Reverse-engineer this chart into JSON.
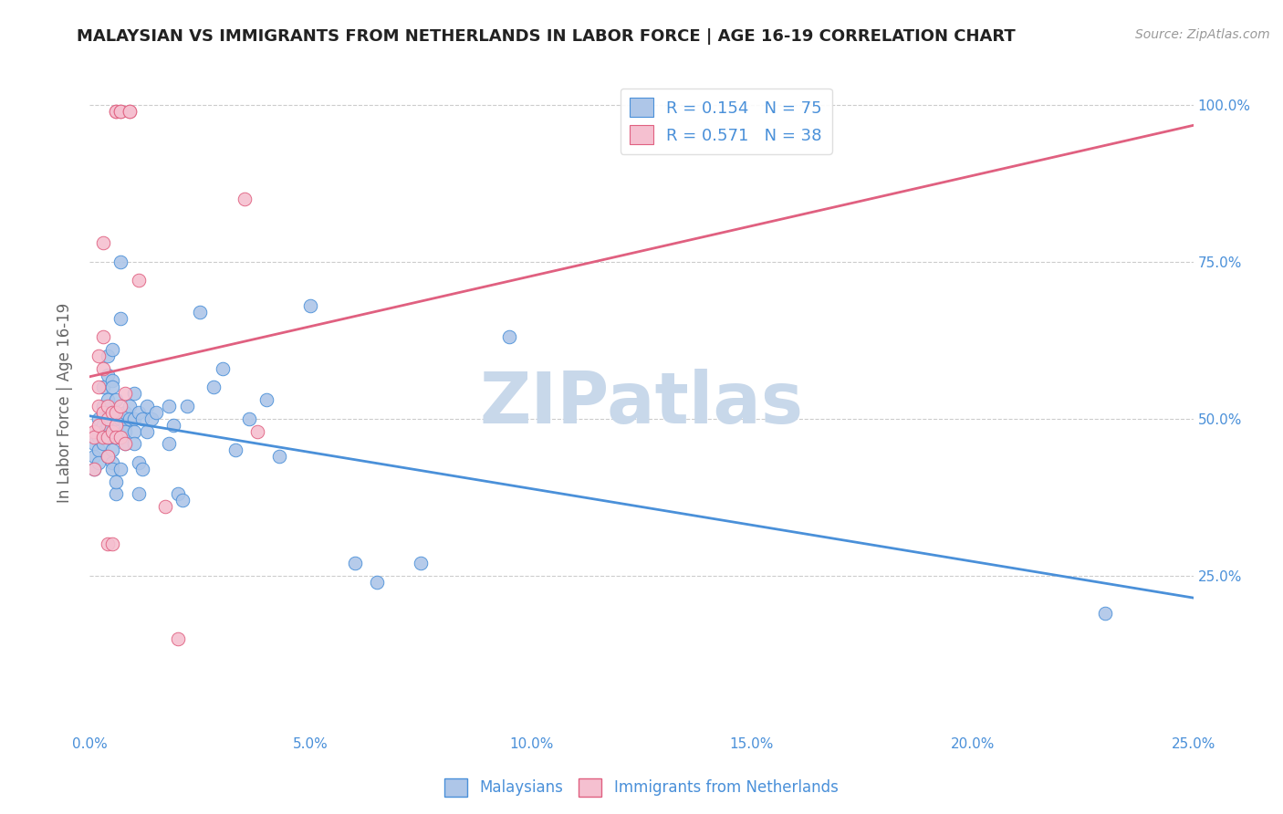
{
  "title": "MALAYSIAN VS IMMIGRANTS FROM NETHERLANDS IN LABOR FORCE | AGE 16-19 CORRELATION CHART",
  "source": "Source: ZipAtlas.com",
  "ylabel": "In Labor Force | Age 16-19",
  "xlim": [
    0.0,
    0.25
  ],
  "ylim": [
    0.0,
    1.05
  ],
  "xtick_labels": [
    "0.0%",
    "5.0%",
    "10.0%",
    "15.0%",
    "20.0%",
    "25.0%"
  ],
  "xtick_values": [
    0.0,
    0.05,
    0.1,
    0.15,
    0.2,
    0.25
  ],
  "ytick_labels": [
    "25.0%",
    "50.0%",
    "75.0%",
    "100.0%"
  ],
  "ytick_values": [
    0.25,
    0.5,
    0.75,
    1.0
  ],
  "blue_color": "#aec6e8",
  "pink_color": "#f5c0d0",
  "blue_line_color": "#4a90d9",
  "pink_line_color": "#e06080",
  "r_blue": 0.154,
  "n_blue": 75,
  "r_pink": 0.571,
  "n_pink": 38,
  "watermark": "ZIPatlas",
  "watermark_color": "#c8d8ea",
  "legend_label_blue": "Malaysians",
  "legend_label_pink": "Immigrants from Netherlands",
  "blue_scatter": [
    [
      0.001,
      0.44
    ],
    [
      0.001,
      0.46
    ],
    [
      0.001,
      0.42
    ],
    [
      0.002,
      0.48
    ],
    [
      0.002,
      0.45
    ],
    [
      0.002,
      0.5
    ],
    [
      0.002,
      0.47
    ],
    [
      0.002,
      0.43
    ],
    [
      0.003,
      0.49
    ],
    [
      0.003,
      0.51
    ],
    [
      0.003,
      0.46
    ],
    [
      0.003,
      0.52
    ],
    [
      0.003,
      0.48
    ],
    [
      0.003,
      0.55
    ],
    [
      0.004,
      0.6
    ],
    [
      0.004,
      0.57
    ],
    [
      0.004,
      0.44
    ],
    [
      0.004,
      0.53
    ],
    [
      0.004,
      0.49
    ],
    [
      0.004,
      0.47
    ],
    [
      0.005,
      0.56
    ],
    [
      0.005,
      0.45
    ],
    [
      0.005,
      0.43
    ],
    [
      0.005,
      0.61
    ],
    [
      0.005,
      0.55
    ],
    [
      0.005,
      0.42
    ],
    [
      0.006,
      0.5
    ],
    [
      0.006,
      0.47
    ],
    [
      0.006,
      0.38
    ],
    [
      0.006,
      0.53
    ],
    [
      0.006,
      0.51
    ],
    [
      0.006,
      0.4
    ],
    [
      0.007,
      0.5
    ],
    [
      0.007,
      0.42
    ],
    [
      0.007,
      0.75
    ],
    [
      0.007,
      0.66
    ],
    [
      0.007,
      0.5
    ],
    [
      0.008,
      0.49
    ],
    [
      0.008,
      0.46
    ],
    [
      0.008,
      0.51
    ],
    [
      0.008,
      0.48
    ],
    [
      0.009,
      0.52
    ],
    [
      0.009,
      0.5
    ],
    [
      0.01,
      0.5
    ],
    [
      0.01,
      0.48
    ],
    [
      0.01,
      0.54
    ],
    [
      0.01,
      0.46
    ],
    [
      0.011,
      0.51
    ],
    [
      0.011,
      0.38
    ],
    [
      0.011,
      0.43
    ],
    [
      0.012,
      0.42
    ],
    [
      0.012,
      0.5
    ],
    [
      0.013,
      0.52
    ],
    [
      0.013,
      0.48
    ],
    [
      0.014,
      0.5
    ],
    [
      0.015,
      0.51
    ],
    [
      0.018,
      0.52
    ],
    [
      0.018,
      0.46
    ],
    [
      0.019,
      0.49
    ],
    [
      0.02,
      0.38
    ],
    [
      0.021,
      0.37
    ],
    [
      0.022,
      0.52
    ],
    [
      0.025,
      0.67
    ],
    [
      0.028,
      0.55
    ],
    [
      0.03,
      0.58
    ],
    [
      0.033,
      0.45
    ],
    [
      0.036,
      0.5
    ],
    [
      0.04,
      0.53
    ],
    [
      0.043,
      0.44
    ],
    [
      0.05,
      0.68
    ],
    [
      0.06,
      0.27
    ],
    [
      0.065,
      0.24
    ],
    [
      0.075,
      0.27
    ],
    [
      0.095,
      0.63
    ],
    [
      0.23,
      0.19
    ]
  ],
  "pink_scatter": [
    [
      0.001,
      0.48
    ],
    [
      0.001,
      0.47
    ],
    [
      0.001,
      0.42
    ],
    [
      0.002,
      0.6
    ],
    [
      0.002,
      0.55
    ],
    [
      0.002,
      0.52
    ],
    [
      0.002,
      0.49
    ],
    [
      0.003,
      0.78
    ],
    [
      0.003,
      0.63
    ],
    [
      0.003,
      0.58
    ],
    [
      0.003,
      0.51
    ],
    [
      0.003,
      0.47
    ],
    [
      0.004,
      0.52
    ],
    [
      0.004,
      0.5
    ],
    [
      0.004,
      0.47
    ],
    [
      0.004,
      0.44
    ],
    [
      0.004,
      0.3
    ],
    [
      0.005,
      0.51
    ],
    [
      0.005,
      0.48
    ],
    [
      0.005,
      0.3
    ],
    [
      0.006,
      0.99
    ],
    [
      0.006,
      0.99
    ],
    [
      0.006,
      0.51
    ],
    [
      0.006,
      0.49
    ],
    [
      0.006,
      0.47
    ],
    [
      0.007,
      0.99
    ],
    [
      0.007,
      0.99
    ],
    [
      0.007,
      0.52
    ],
    [
      0.007,
      0.47
    ],
    [
      0.008,
      0.54
    ],
    [
      0.008,
      0.46
    ],
    [
      0.009,
      0.99
    ],
    [
      0.009,
      0.99
    ],
    [
      0.011,
      0.72
    ],
    [
      0.017,
      0.36
    ],
    [
      0.02,
      0.15
    ],
    [
      0.035,
      0.85
    ],
    [
      0.038,
      0.48
    ]
  ]
}
